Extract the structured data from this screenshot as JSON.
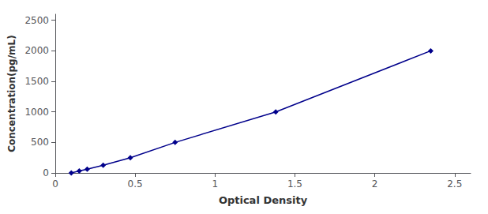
{
  "chart_data": {
    "type": "line",
    "x": [
      0.1,
      0.15,
      0.2,
      0.3,
      0.47,
      0.75,
      1.38,
      2.35
    ],
    "values": [
      0,
      31.25,
      62.5,
      125,
      250,
      500,
      1000,
      2000
    ],
    "color": "#00008B",
    "marker": "diamond",
    "line_style": "solid",
    "xlabel": "Optical Density",
    "ylabel": "Concentration(pg/mL)",
    "xlim": [
      0,
      2.6
    ],
    "ylim": [
      0,
      2600
    ],
    "xticks": [
      0,
      0.5,
      1,
      1.5,
      2,
      2.5
    ],
    "yticks": [
      0,
      500,
      1000,
      1500,
      2000,
      2500
    ],
    "grid": false
  }
}
